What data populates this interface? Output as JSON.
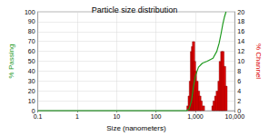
{
  "chart_data": {
    "type": "combo",
    "title": "Particle size distribution",
    "xlabel": "Size (nanometers)",
    "ylabel": "% Passing",
    "y2label": "% Channel",
    "log": "x",
    "grid": true,
    "xlim": [
      0.1,
      10000
    ],
    "xticks": [
      0.1,
      1,
      10,
      100,
      {
        "value": 1000,
        "label": "1,000"
      },
      {
        "value": 10000,
        "label": "10,000"
      }
    ],
    "ylim": [
      0,
      100
    ],
    "yticks": [
      0,
      10,
      20,
      30,
      40,
      50,
      60,
      70,
      80,
      90,
      100
    ],
    "y2lim": [
      0,
      20
    ],
    "y2ticks": [
      0,
      2,
      4,
      6,
      8,
      10,
      12,
      14,
      16,
      18,
      20
    ],
    "series": [
      {
        "type": "line",
        "color": "#1f9a1f",
        "x": [
          0.1,
          600,
          700,
          800,
          900,
          1000,
          1200,
          1500,
          2000,
          2800,
          3500,
          4000,
          4500,
          5000,
          5500,
          6000
        ],
        "values": [
          0,
          0,
          2,
          10,
          25,
          35,
          44,
          48,
          50,
          53,
          60,
          68,
          78,
          88,
          95,
          100
        ]
      },
      {
        "type": "bar",
        "axis": "y2",
        "color": "#dd0000",
        "x": [
          650,
          700,
          750,
          800,
          850,
          900,
          950,
          1000,
          1100,
          1200,
          1300,
          1400,
          1600,
          2800,
          3000,
          3300,
          3600,
          4000,
          4300,
          4700,
          5000,
          5500,
          6000
        ],
        "values": [
          1,
          3,
          6,
          12,
          13,
          14,
          10,
          8,
          6,
          4,
          3,
          2,
          1,
          1,
          2,
          3,
          4,
          6,
          10,
          12,
          12,
          9,
          5
        ]
      }
    ]
  }
}
